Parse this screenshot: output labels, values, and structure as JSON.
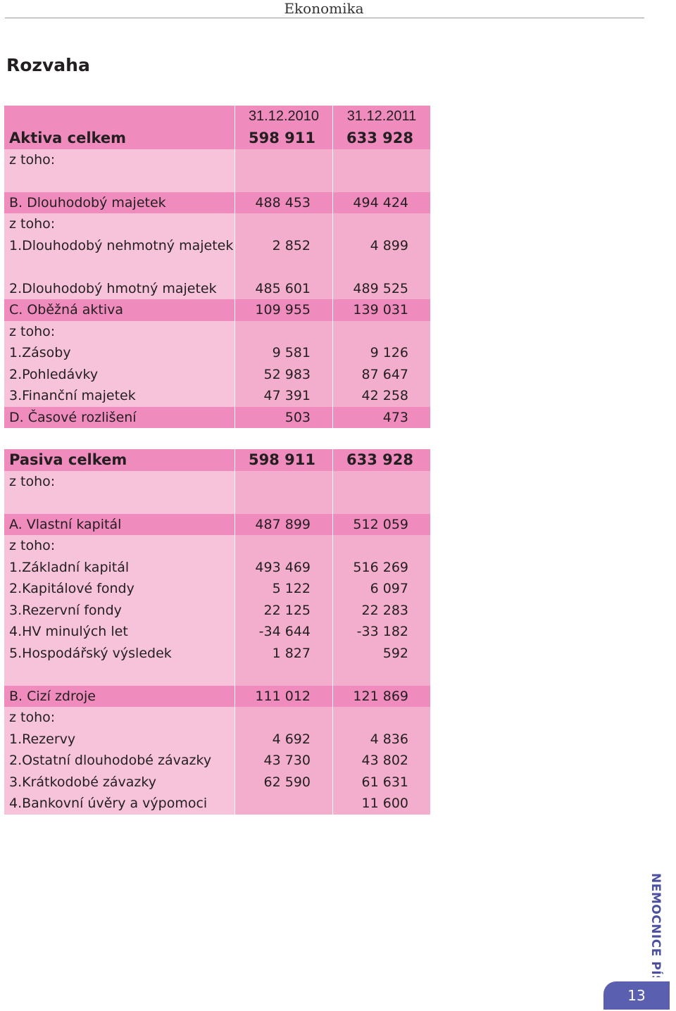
{
  "header": {
    "title": "Ekonomika"
  },
  "page_title": "Rozvaha",
  "table": {
    "rows": [
      {
        "style": "dark dates",
        "label": "",
        "v2010": "31.12.2010",
        "v2011": "31.12.2011"
      },
      {
        "style": "dark bold",
        "label": "Aktiva celkem",
        "v2010": "598 911",
        "v2011": "633 928"
      },
      {
        "style": "light",
        "label": "z toho:",
        "v2010": "",
        "v2011": ""
      },
      {
        "style": "light",
        "label": "",
        "v2010": "",
        "v2011": ""
      },
      {
        "style": "dark",
        "label": "B. Dlouhodobý majetek",
        "v2010": "488 453",
        "v2011": "494 424"
      },
      {
        "style": "light",
        "label": "z toho:",
        "v2010": "",
        "v2011": ""
      },
      {
        "style": "light",
        "label": "1.Dlouhodobý nehmotný majetek",
        "v2010": "2 852",
        "v2011": "4 899"
      },
      {
        "style": "light",
        "label": "",
        "v2010": "",
        "v2011": ""
      },
      {
        "style": "light",
        "label": "2.Dlouhodobý hmotný majetek",
        "v2010": "485 601",
        "v2011": "489 525"
      },
      {
        "style": "dark",
        "label": "C. Oběžná aktiva",
        "v2010": "109 955",
        "v2011": "139 031"
      },
      {
        "style": "light",
        "label": "z toho:",
        "v2010": "",
        "v2011": ""
      },
      {
        "style": "light",
        "label": "1.Zásoby",
        "v2010": "9 581",
        "v2011": "9 126"
      },
      {
        "style": "light",
        "label": "2.Pohledávky",
        "v2010": "52 983",
        "v2011": "87 647"
      },
      {
        "style": "light",
        "label": "3.Finanční majetek",
        "v2010": "47 391",
        "v2011": "42 258"
      },
      {
        "style": "dark",
        "label": "D. Časové rozlišení",
        "v2010": "503",
        "v2011": "473"
      },
      {
        "style": "spacer",
        "label": "",
        "v2010": "",
        "v2011": ""
      },
      {
        "style": "dark bold",
        "label": "Pasiva celkem",
        "v2010": "598 911",
        "v2011": "633 928"
      },
      {
        "style": "light",
        "label": "z toho:",
        "v2010": "",
        "v2011": ""
      },
      {
        "style": "light",
        "label": "",
        "v2010": "",
        "v2011": ""
      },
      {
        "style": "dark",
        "label": "A. Vlastní kapitál",
        "v2010": "487 899",
        "v2011": "512 059"
      },
      {
        "style": "light",
        "label": "z toho:",
        "v2010": "",
        "v2011": ""
      },
      {
        "style": "light",
        "label": "1.Základní kapitál",
        "v2010": "493 469",
        "v2011": "516 269"
      },
      {
        "style": "light",
        "label": "2.Kapitálové fondy",
        "v2010": "5 122",
        "v2011": "6 097"
      },
      {
        "style": "light",
        "label": "3.Rezervní fondy",
        "v2010": "22 125",
        "v2011": "22 283"
      },
      {
        "style": "light",
        "label": "4.HV minulých let",
        "v2010": "-34 644",
        "v2011": "-33 182"
      },
      {
        "style": "light",
        "label": "5.Hospodářský výsledek",
        "v2010": "1 827",
        "v2011": "592"
      },
      {
        "style": "light",
        "label": "",
        "v2010": "",
        "v2011": ""
      },
      {
        "style": "dark",
        "label": "B. Cizí zdroje",
        "v2010": "111 012",
        "v2011": "121 869"
      },
      {
        "style": "light",
        "label": "z toho:",
        "v2010": "",
        "v2011": ""
      },
      {
        "style": "light",
        "label": "1.Rezervy",
        "v2010": "4 692",
        "v2011": "4 836"
      },
      {
        "style": "light",
        "label": "2.Ostatní dlouhodobé závazky",
        "v2010": "43 730",
        "v2011": "43 802"
      },
      {
        "style": "light",
        "label": "3.Krátkodobé závazky",
        "v2010": "62 590",
        "v2011": "61 631"
      },
      {
        "style": "light",
        "label": "4.Bankovní úvěry a výpomoci",
        "v2010": "",
        "v2011": "11 600"
      }
    ]
  },
  "logo": {
    "text": "NEMOCNICE PÍSEK",
    "color": "#4b4f9e"
  },
  "page_number": "13",
  "colors": {
    "row_dark": "#ef8bbd",
    "row_light": "#f7c3da",
    "row_value": "#f4aecd",
    "badge": "#5a5fb0"
  }
}
